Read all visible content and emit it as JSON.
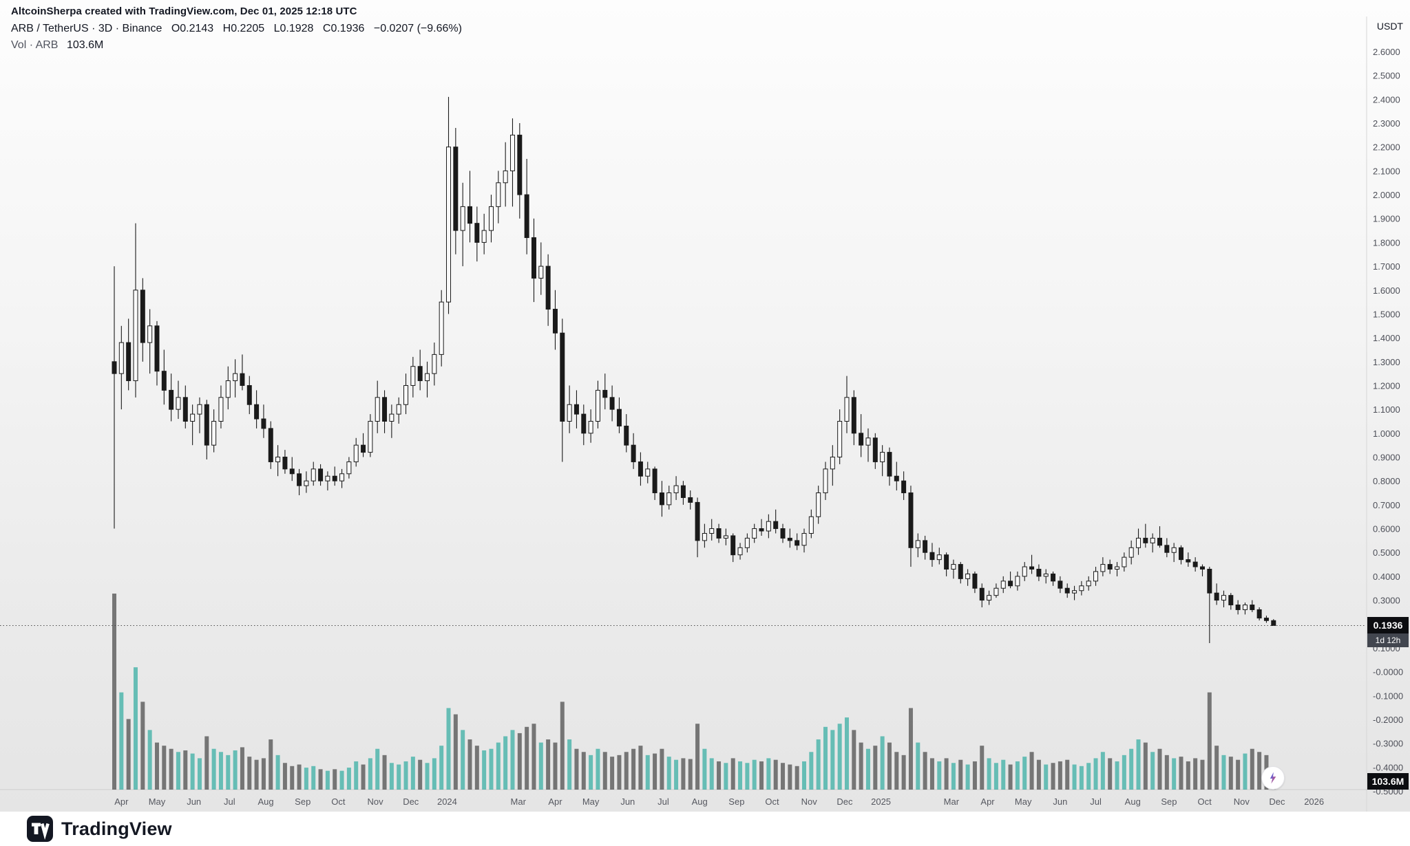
{
  "attribution": "AltcoinSherpa created with TradingView.com, Dec 01, 2025 12:18 UTC",
  "header": {
    "symbol": "ARB / TetherUS · 3D · Binance",
    "o": "O0.2143",
    "h": "H0.2205",
    "l": "L0.1928",
    "c": "C0.1936",
    "change": "−0.0207 (−9.66%)",
    "vol_label": "Vol · ARB",
    "vol_value": "103.6M"
  },
  "price_axis": {
    "currency": "USDT",
    "ticks": [
      "2.6000",
      "2.5000",
      "2.4000",
      "2.3000",
      "2.2000",
      "2.1000",
      "2.0000",
      "1.9000",
      "1.8000",
      "1.7000",
      "1.6000",
      "1.5000",
      "1.4000",
      "1.3000",
      "1.2000",
      "1.1000",
      "1.0000",
      "0.9000",
      "0.8000",
      "0.7000",
      "0.6000",
      "0.5000",
      "0.4000",
      "0.3000",
      "0.2000",
      "0.1000",
      "-0.0000",
      "-0.1000",
      "-0.2000",
      "-0.3000",
      "-0.4000",
      "-0.5000"
    ],
    "last_price_badge": "0.1936",
    "countdown": "1d 12h",
    "volume_badge": "103.6M"
  },
  "footer": {
    "brand": "TradingView"
  },
  "colors": {
    "candle": "#1a1a1a",
    "candle_up_fill": "#fafafa",
    "up_volume": "#5fbab2",
    "down_volume": "#595959",
    "badge_bg": "#0c0d10",
    "muted_text": "#50535e",
    "axis_text": "#4d4f58"
  },
  "chart_data": {
    "type": "candlestick",
    "symbol": "ARB/USDT",
    "exchange": "Binance",
    "interval": "3D",
    "legend": "price candles with volume histogram overlay (teal = up, gray = down)",
    "grid": false,
    "price_axis_range": [
      -0.5,
      2.6
    ],
    "last_price": 0.1936,
    "last_change": "-0.0207 (-9.66%)",
    "last_volume_millions": 103.6,
    "x_ticks": [
      {
        "label": "Apr",
        "i": 1.0
      },
      {
        "label": "May",
        "i": 6.0
      },
      {
        "label": "Jun",
        "i": 11.2
      },
      {
        "label": "Jul",
        "i": 16.2
      },
      {
        "label": "Aug",
        "i": 21.3
      },
      {
        "label": "Sep",
        "i": 26.5
      },
      {
        "label": "Oct",
        "i": 31.5
      },
      {
        "label": "Nov",
        "i": 36.7
      },
      {
        "label": "Dec",
        "i": 41.7
      },
      {
        "label": "2024",
        "i": 46.8
      },
      {
        "label": "Mar",
        "i": 56.8
      },
      {
        "label": "Apr",
        "i": 62.0
      },
      {
        "label": "May",
        "i": 67.0
      },
      {
        "label": "Jun",
        "i": 72.2
      },
      {
        "label": "Jul",
        "i": 77.2
      },
      {
        "label": "Aug",
        "i": 82.3
      },
      {
        "label": "Sep",
        "i": 87.5
      },
      {
        "label": "Oct",
        "i": 92.5
      },
      {
        "label": "Nov",
        "i": 97.7
      },
      {
        "label": "Dec",
        "i": 102.7
      },
      {
        "label": "2025",
        "i": 107.8
      },
      {
        "label": "Mar",
        "i": 117.7
      },
      {
        "label": "Apr",
        "i": 122.8
      },
      {
        "label": "May",
        "i": 127.8
      },
      {
        "label": "Jun",
        "i": 133.0
      },
      {
        "label": "Jul",
        "i": 138.0
      },
      {
        "label": "Aug",
        "i": 143.2
      },
      {
        "label": "Sep",
        "i": 148.3
      },
      {
        "label": "Oct",
        "i": 153.3
      },
      {
        "label": "Nov",
        "i": 158.5
      },
      {
        "label": "Dec",
        "i": 163.5
      },
      {
        "label": "2026",
        "i": 168.7
      }
    ],
    "candles": [
      [
        1.3,
        1.7,
        0.6,
        1.25
      ],
      [
        1.25,
        1.45,
        1.1,
        1.38
      ],
      [
        1.38,
        1.48,
        1.18,
        1.22
      ],
      [
        1.22,
        1.88,
        1.15,
        1.6
      ],
      [
        1.6,
        1.65,
        1.3,
        1.38
      ],
      [
        1.38,
        1.52,
        1.25,
        1.45
      ],
      [
        1.45,
        1.47,
        1.2,
        1.26
      ],
      [
        1.26,
        1.35,
        1.12,
        1.18
      ],
      [
        1.18,
        1.25,
        1.05,
        1.1
      ],
      [
        1.1,
        1.22,
        1.06,
        1.15
      ],
      [
        1.15,
        1.2,
        1.02,
        1.05
      ],
      [
        1.05,
        1.12,
        0.95,
        1.08
      ],
      [
        1.08,
        1.15,
        1.0,
        1.12
      ],
      [
        1.12,
        1.14,
        0.89,
        0.95
      ],
      [
        0.95,
        1.1,
        0.92,
        1.05
      ],
      [
        1.05,
        1.2,
        1.02,
        1.15
      ],
      [
        1.15,
        1.28,
        1.1,
        1.22
      ],
      [
        1.22,
        1.31,
        1.15,
        1.25
      ],
      [
        1.25,
        1.33,
        1.18,
        1.2
      ],
      [
        1.2,
        1.24,
        1.08,
        1.12
      ],
      [
        1.12,
        1.18,
        1.02,
        1.06
      ],
      [
        1.06,
        1.12,
        0.98,
        1.02
      ],
      [
        1.02,
        1.05,
        0.85,
        0.88
      ],
      [
        0.88,
        0.95,
        0.82,
        0.9
      ],
      [
        0.9,
        0.93,
        0.83,
        0.85
      ],
      [
        0.85,
        0.9,
        0.8,
        0.83
      ],
      [
        0.83,
        0.85,
        0.74,
        0.78
      ],
      [
        0.78,
        0.84,
        0.75,
        0.8
      ],
      [
        0.8,
        0.88,
        0.78,
        0.85
      ],
      [
        0.85,
        0.87,
        0.78,
        0.8
      ],
      [
        0.8,
        0.84,
        0.76,
        0.82
      ],
      [
        0.82,
        0.86,
        0.78,
        0.8
      ],
      [
        0.8,
        0.85,
        0.77,
        0.83
      ],
      [
        0.83,
        0.9,
        0.81,
        0.88
      ],
      [
        0.88,
        0.98,
        0.86,
        0.95
      ],
      [
        0.95,
        1.0,
        0.9,
        0.92
      ],
      [
        0.92,
        1.08,
        0.9,
        1.05
      ],
      [
        1.05,
        1.22,
        1.0,
        1.15
      ],
      [
        1.15,
        1.18,
        1.0,
        1.05
      ],
      [
        1.05,
        1.12,
        0.98,
        1.08
      ],
      [
        1.08,
        1.15,
        1.04,
        1.12
      ],
      [
        1.12,
        1.25,
        1.08,
        1.2
      ],
      [
        1.2,
        1.32,
        1.15,
        1.28
      ],
      [
        1.28,
        1.35,
        1.18,
        1.22
      ],
      [
        1.22,
        1.3,
        1.15,
        1.25
      ],
      [
        1.25,
        1.38,
        1.2,
        1.33
      ],
      [
        1.33,
        1.6,
        1.28,
        1.55
      ],
      [
        1.55,
        2.41,
        1.5,
        2.2
      ],
      [
        2.2,
        2.28,
        1.75,
        1.85
      ],
      [
        1.85,
        2.05,
        1.7,
        1.95
      ],
      [
        1.95,
        2.1,
        1.8,
        1.88
      ],
      [
        1.88,
        1.95,
        1.72,
        1.8
      ],
      [
        1.8,
        1.92,
        1.75,
        1.85
      ],
      [
        1.85,
        2.0,
        1.8,
        1.95
      ],
      [
        1.95,
        2.1,
        1.88,
        2.05
      ],
      [
        2.05,
        2.22,
        1.95,
        2.1
      ],
      [
        2.1,
        2.32,
        1.95,
        2.25
      ],
      [
        2.25,
        2.3,
        1.9,
        2.0
      ],
      [
        2.0,
        2.15,
        1.75,
        1.82
      ],
      [
        1.82,
        1.9,
        1.55,
        1.65
      ],
      [
        1.65,
        1.8,
        1.58,
        1.7
      ],
      [
        1.7,
        1.75,
        1.45,
        1.52
      ],
      [
        1.52,
        1.6,
        1.35,
        1.42
      ],
      [
        1.42,
        1.48,
        0.88,
        1.05
      ],
      [
        1.05,
        1.2,
        1.0,
        1.12
      ],
      [
        1.12,
        1.18,
        1.02,
        1.08
      ],
      [
        1.08,
        1.12,
        0.95,
        1.0
      ],
      [
        1.0,
        1.1,
        0.96,
        1.05
      ],
      [
        1.05,
        1.22,
        1.02,
        1.18
      ],
      [
        1.18,
        1.25,
        1.1,
        1.15
      ],
      [
        1.15,
        1.2,
        1.05,
        1.1
      ],
      [
        1.1,
        1.15,
        1.0,
        1.03
      ],
      [
        1.03,
        1.08,
        0.92,
        0.95
      ],
      [
        0.95,
        1.0,
        0.85,
        0.88
      ],
      [
        0.88,
        0.92,
        0.78,
        0.82
      ],
      [
        0.82,
        0.88,
        0.79,
        0.85
      ],
      [
        0.85,
        0.86,
        0.72,
        0.75
      ],
      [
        0.75,
        0.8,
        0.65,
        0.7
      ],
      [
        0.7,
        0.78,
        0.68,
        0.75
      ],
      [
        0.75,
        0.82,
        0.72,
        0.78
      ],
      [
        0.78,
        0.8,
        0.7,
        0.73
      ],
      [
        0.73,
        0.76,
        0.68,
        0.71
      ],
      [
        0.71,
        0.73,
        0.48,
        0.55
      ],
      [
        0.55,
        0.62,
        0.52,
        0.58
      ],
      [
        0.58,
        0.64,
        0.55,
        0.6
      ],
      [
        0.6,
        0.62,
        0.54,
        0.56
      ],
      [
        0.56,
        0.6,
        0.53,
        0.57
      ],
      [
        0.57,
        0.58,
        0.46,
        0.49
      ],
      [
        0.49,
        0.54,
        0.47,
        0.52
      ],
      [
        0.52,
        0.58,
        0.5,
        0.56
      ],
      [
        0.56,
        0.62,
        0.54,
        0.6
      ],
      [
        0.6,
        0.64,
        0.57,
        0.59
      ],
      [
        0.59,
        0.66,
        0.56,
        0.63
      ],
      [
        0.63,
        0.68,
        0.58,
        0.6
      ],
      [
        0.6,
        0.62,
        0.54,
        0.56
      ],
      [
        0.56,
        0.6,
        0.52,
        0.55
      ],
      [
        0.55,
        0.58,
        0.51,
        0.53
      ],
      [
        0.53,
        0.6,
        0.5,
        0.58
      ],
      [
        0.58,
        0.68,
        0.56,
        0.65
      ],
      [
        0.65,
        0.78,
        0.62,
        0.75
      ],
      [
        0.75,
        0.88,
        0.72,
        0.85
      ],
      [
        0.85,
        0.95,
        0.78,
        0.9
      ],
      [
        0.9,
        1.1,
        0.87,
        1.05
      ],
      [
        1.05,
        1.24,
        1.0,
        1.15
      ],
      [
        1.15,
        1.18,
        0.95,
        1.0
      ],
      [
        1.0,
        1.08,
        0.9,
        0.95
      ],
      [
        0.95,
        1.02,
        0.88,
        0.98
      ],
      [
        0.98,
        1.0,
        0.85,
        0.88
      ],
      [
        0.88,
        0.95,
        0.82,
        0.92
      ],
      [
        0.92,
        0.94,
        0.78,
        0.82
      ],
      [
        0.82,
        0.88,
        0.76,
        0.8
      ],
      [
        0.8,
        0.84,
        0.72,
        0.75
      ],
      [
        0.75,
        0.78,
        0.44,
        0.52
      ],
      [
        0.52,
        0.58,
        0.48,
        0.55
      ],
      [
        0.55,
        0.57,
        0.47,
        0.5
      ],
      [
        0.5,
        0.54,
        0.44,
        0.47
      ],
      [
        0.47,
        0.52,
        0.45,
        0.49
      ],
      [
        0.49,
        0.5,
        0.4,
        0.43
      ],
      [
        0.43,
        0.47,
        0.39,
        0.45
      ],
      [
        0.45,
        0.46,
        0.37,
        0.39
      ],
      [
        0.39,
        0.43,
        0.36,
        0.41
      ],
      [
        0.41,
        0.42,
        0.33,
        0.35
      ],
      [
        0.35,
        0.37,
        0.27,
        0.3
      ],
      [
        0.3,
        0.34,
        0.28,
        0.32
      ],
      [
        0.32,
        0.37,
        0.31,
        0.35
      ],
      [
        0.35,
        0.4,
        0.33,
        0.38
      ],
      [
        0.38,
        0.42,
        0.35,
        0.36
      ],
      [
        0.36,
        0.42,
        0.34,
        0.4
      ],
      [
        0.4,
        0.46,
        0.38,
        0.44
      ],
      [
        0.44,
        0.49,
        0.41,
        0.43
      ],
      [
        0.43,
        0.45,
        0.38,
        0.4
      ],
      [
        0.4,
        0.43,
        0.37,
        0.41
      ],
      [
        0.41,
        0.42,
        0.36,
        0.38
      ],
      [
        0.38,
        0.4,
        0.33,
        0.35
      ],
      [
        0.35,
        0.37,
        0.31,
        0.33
      ],
      [
        0.33,
        0.36,
        0.3,
        0.34
      ],
      [
        0.34,
        0.38,
        0.32,
        0.36
      ],
      [
        0.36,
        0.4,
        0.34,
        0.38
      ],
      [
        0.38,
        0.44,
        0.36,
        0.42
      ],
      [
        0.42,
        0.48,
        0.4,
        0.45
      ],
      [
        0.45,
        0.47,
        0.41,
        0.43
      ],
      [
        0.43,
        0.46,
        0.4,
        0.44
      ],
      [
        0.44,
        0.5,
        0.42,
        0.48
      ],
      [
        0.48,
        0.55,
        0.45,
        0.52
      ],
      [
        0.52,
        0.6,
        0.49,
        0.56
      ],
      [
        0.56,
        0.62,
        0.52,
        0.54
      ],
      [
        0.54,
        0.58,
        0.5,
        0.56
      ],
      [
        0.56,
        0.61,
        0.52,
        0.53
      ],
      [
        0.53,
        0.56,
        0.48,
        0.5
      ],
      [
        0.5,
        0.54,
        0.46,
        0.52
      ],
      [
        0.52,
        0.53,
        0.45,
        0.47
      ],
      [
        0.47,
        0.5,
        0.44,
        0.46
      ],
      [
        0.46,
        0.48,
        0.42,
        0.44
      ],
      [
        0.44,
        0.45,
        0.4,
        0.43
      ],
      [
        0.43,
        0.44,
        0.12,
        0.33
      ],
      [
        0.33,
        0.37,
        0.28,
        0.3
      ],
      [
        0.3,
        0.34,
        0.27,
        0.32
      ],
      [
        0.32,
        0.33,
        0.26,
        0.28
      ],
      [
        0.28,
        0.3,
        0.24,
        0.26
      ],
      [
        0.26,
        0.29,
        0.24,
        0.28
      ],
      [
        0.28,
        0.3,
        0.25,
        0.26
      ],
      [
        0.26,
        0.27,
        0.215,
        0.225
      ],
      [
        0.225,
        0.235,
        0.205,
        0.2143
      ],
      [
        0.2143,
        0.2205,
        0.1928,
        0.1936
      ]
    ],
    "volumes_millions": [
      1250,
      620,
      450,
      780,
      560,
      380,
      300,
      280,
      260,
      240,
      250,
      230,
      200,
      340,
      260,
      240,
      220,
      250,
      270,
      210,
      190,
      200,
      320,
      220,
      170,
      150,
      160,
      140,
      150,
      130,
      120,
      130,
      120,
      140,
      180,
      160,
      200,
      260,
      220,
      170,
      160,
      180,
      210,
      190,
      170,
      200,
      280,
      520,
      480,
      380,
      320,
      280,
      250,
      260,
      300,
      340,
      380,
      360,
      400,
      420,
      300,
      320,
      300,
      560,
      320,
      260,
      240,
      220,
      260,
      240,
      210,
      220,
      240,
      260,
      280,
      220,
      230,
      260,
      210,
      190,
      200,
      195,
      420,
      260,
      200,
      180,
      170,
      200,
      180,
      170,
      190,
      180,
      200,
      190,
      170,
      160,
      150,
      180,
      240,
      320,
      400,
      380,
      420,
      460,
      380,
      300,
      260,
      280,
      340,
      300,
      240,
      220,
      520,
      300,
      240,
      200,
      180,
      200,
      170,
      190,
      160,
      180,
      280,
      200,
      170,
      190,
      160,
      180,
      210,
      240,
      190,
      160,
      170,
      180,
      190,
      160,
      150,
      170,
      200,
      240,
      200,
      180,
      220,
      260,
      320,
      300,
      240,
      260,
      220,
      200,
      210,
      180,
      200,
      190,
      620,
      280,
      220,
      210,
      190,
      230,
      260,
      240,
      220,
      103.6
    ]
  }
}
